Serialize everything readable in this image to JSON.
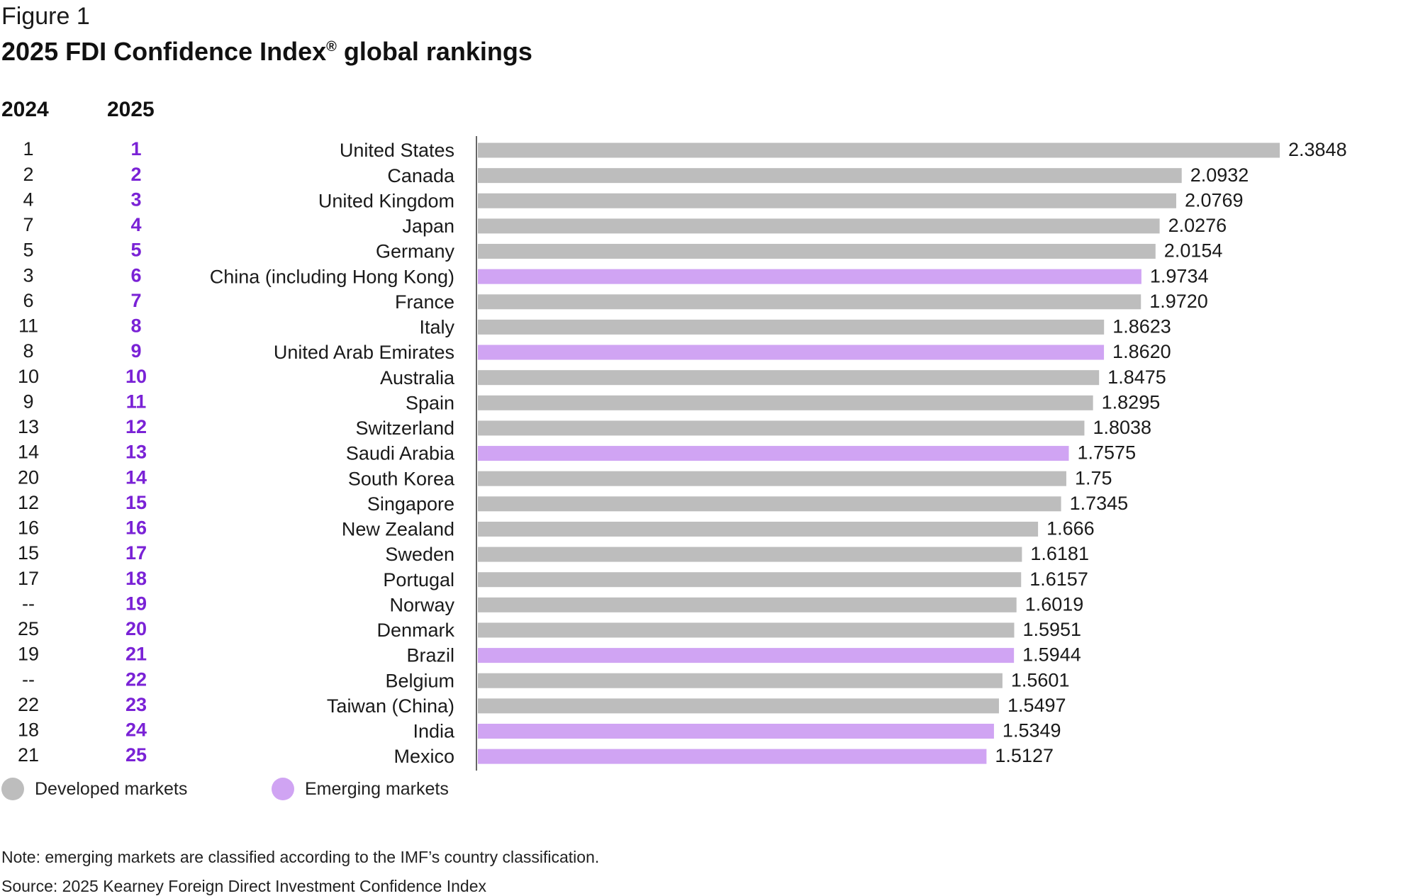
{
  "figure_label": "Figure 1",
  "title_main": "2025 FDI Confidence Index",
  "title_reg": "®",
  "title_tail": " global rankings",
  "col_2024": "2024",
  "col_2025": "2025",
  "legend": [
    {
      "label": "Developed markets",
      "color": "#bdbdbd"
    },
    {
      "label": "Emerging markets",
      "color": "#d0a4f3"
    }
  ],
  "note": "Note: emerging markets are classified according to the IMF’s country classification.",
  "source": "Source: 2025 Kearney Foreign Direct Investment Confidence Index",
  "colors": {
    "developed": "#bdbdbd",
    "emerging": "#d0a4f3",
    "rank2025": "#7a22d6",
    "axis": "#666666"
  },
  "chart_data": {
    "type": "bar",
    "orientation": "horizontal",
    "categories": [
      "United States",
      "Canada",
      "United Kingdom",
      "Japan",
      "Germany",
      "China (including Hong Kong)",
      "France",
      "Italy",
      "United Arab Emirates",
      "Australia",
      "Spain",
      "Switzerland",
      "Saudi Arabia",
      "South Korea",
      "Singapore",
      "New Zealand",
      "Sweden",
      "Portugal",
      "Norway",
      "Denmark",
      "Brazil",
      "Belgium",
      "Taiwan (China)",
      "India",
      "Mexico"
    ],
    "values": [
      2.3848,
      2.0932,
      2.0769,
      2.0276,
      2.0154,
      1.9734,
      1.972,
      1.8623,
      1.862,
      1.8475,
      1.8295,
      1.8038,
      1.7575,
      1.75,
      1.7345,
      1.666,
      1.6181,
      1.6157,
      1.6019,
      1.5951,
      1.5944,
      1.5601,
      1.5497,
      1.5349,
      1.5127
    ],
    "value_labels": [
      "2.3848",
      "2.0932",
      "2.0769",
      "2.0276",
      "2.0154",
      "1.9734",
      "1.9720",
      "1.8623",
      "1.8620",
      "1.8475",
      "1.8295",
      "1.8038",
      "1.7575",
      "1.75",
      "1.7345",
      "1.666",
      "1.6181",
      "1.6157",
      "1.6019",
      "1.5951",
      "1.5944",
      "1.5601",
      "1.5497",
      "1.5349",
      "1.5127"
    ],
    "market": [
      "developed",
      "developed",
      "developed",
      "developed",
      "developed",
      "emerging",
      "developed",
      "developed",
      "emerging",
      "developed",
      "developed",
      "developed",
      "emerging",
      "developed",
      "developed",
      "developed",
      "developed",
      "developed",
      "developed",
      "developed",
      "emerging",
      "developed",
      "developed",
      "emerging",
      "emerging"
    ],
    "rank_2024": [
      "1",
      "2",
      "4",
      "7",
      "5",
      "3",
      "6",
      "11",
      "8",
      "10",
      "9",
      "13",
      "14",
      "20",
      "12",
      "16",
      "15",
      "17",
      "--",
      "25",
      "19",
      "--",
      "22",
      "18",
      "21"
    ],
    "rank_2025": [
      "1",
      "2",
      "3",
      "4",
      "5",
      "6",
      "7",
      "8",
      "9",
      "10",
      "11",
      "12",
      "13",
      "14",
      "15",
      "16",
      "17",
      "18",
      "19",
      "20",
      "21",
      "22",
      "23",
      "24",
      "25"
    ],
    "xlim": [
      0,
      2.3848
    ],
    "grid": false,
    "legend_position": "bottom-left"
  }
}
